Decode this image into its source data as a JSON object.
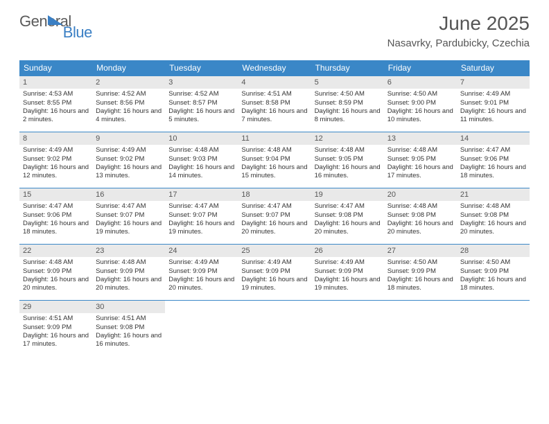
{
  "logo": {
    "word1": "General",
    "word2": "Blue"
  },
  "title": "June 2025",
  "location": "Nasavrky, Pardubicky, Czechia",
  "colors": {
    "header_bg": "#3a87c7",
    "header_text": "#ffffff",
    "daynum_bg": "#e9e9e9",
    "border": "#3a87c7",
    "logo_gray": "#5a5a5a",
    "logo_blue": "#3a7fc4"
  },
  "typography": {
    "title_fontsize": 28,
    "location_fontsize": 15,
    "weekday_fontsize": 12,
    "daynum_fontsize": 11,
    "body_fontsize": 9.5
  },
  "weekdays": [
    "Sunday",
    "Monday",
    "Tuesday",
    "Wednesday",
    "Thursday",
    "Friday",
    "Saturday"
  ],
  "labels": {
    "sunrise": "Sunrise:",
    "sunset": "Sunset:",
    "daylight": "Daylight:"
  },
  "weeks": [
    [
      {
        "n": "1",
        "sr": "4:53 AM",
        "ss": "8:55 PM",
        "dl": "16 hours and 2 minutes."
      },
      {
        "n": "2",
        "sr": "4:52 AM",
        "ss": "8:56 PM",
        "dl": "16 hours and 4 minutes."
      },
      {
        "n": "3",
        "sr": "4:52 AM",
        "ss": "8:57 PM",
        "dl": "16 hours and 5 minutes."
      },
      {
        "n": "4",
        "sr": "4:51 AM",
        "ss": "8:58 PM",
        "dl": "16 hours and 7 minutes."
      },
      {
        "n": "5",
        "sr": "4:50 AM",
        "ss": "8:59 PM",
        "dl": "16 hours and 8 minutes."
      },
      {
        "n": "6",
        "sr": "4:50 AM",
        "ss": "9:00 PM",
        "dl": "16 hours and 10 minutes."
      },
      {
        "n": "7",
        "sr": "4:49 AM",
        "ss": "9:01 PM",
        "dl": "16 hours and 11 minutes."
      }
    ],
    [
      {
        "n": "8",
        "sr": "4:49 AM",
        "ss": "9:02 PM",
        "dl": "16 hours and 12 minutes."
      },
      {
        "n": "9",
        "sr": "4:49 AM",
        "ss": "9:02 PM",
        "dl": "16 hours and 13 minutes."
      },
      {
        "n": "10",
        "sr": "4:48 AM",
        "ss": "9:03 PM",
        "dl": "16 hours and 14 minutes."
      },
      {
        "n": "11",
        "sr": "4:48 AM",
        "ss": "9:04 PM",
        "dl": "16 hours and 15 minutes."
      },
      {
        "n": "12",
        "sr": "4:48 AM",
        "ss": "9:05 PM",
        "dl": "16 hours and 16 minutes."
      },
      {
        "n": "13",
        "sr": "4:48 AM",
        "ss": "9:05 PM",
        "dl": "16 hours and 17 minutes."
      },
      {
        "n": "14",
        "sr": "4:47 AM",
        "ss": "9:06 PM",
        "dl": "16 hours and 18 minutes."
      }
    ],
    [
      {
        "n": "15",
        "sr": "4:47 AM",
        "ss": "9:06 PM",
        "dl": "16 hours and 18 minutes."
      },
      {
        "n": "16",
        "sr": "4:47 AM",
        "ss": "9:07 PM",
        "dl": "16 hours and 19 minutes."
      },
      {
        "n": "17",
        "sr": "4:47 AM",
        "ss": "9:07 PM",
        "dl": "16 hours and 19 minutes."
      },
      {
        "n": "18",
        "sr": "4:47 AM",
        "ss": "9:07 PM",
        "dl": "16 hours and 20 minutes."
      },
      {
        "n": "19",
        "sr": "4:47 AM",
        "ss": "9:08 PM",
        "dl": "16 hours and 20 minutes."
      },
      {
        "n": "20",
        "sr": "4:48 AM",
        "ss": "9:08 PM",
        "dl": "16 hours and 20 minutes."
      },
      {
        "n": "21",
        "sr": "4:48 AM",
        "ss": "9:08 PM",
        "dl": "16 hours and 20 minutes."
      }
    ],
    [
      {
        "n": "22",
        "sr": "4:48 AM",
        "ss": "9:09 PM",
        "dl": "16 hours and 20 minutes."
      },
      {
        "n": "23",
        "sr": "4:48 AM",
        "ss": "9:09 PM",
        "dl": "16 hours and 20 minutes."
      },
      {
        "n": "24",
        "sr": "4:49 AM",
        "ss": "9:09 PM",
        "dl": "16 hours and 20 minutes."
      },
      {
        "n": "25",
        "sr": "4:49 AM",
        "ss": "9:09 PM",
        "dl": "16 hours and 19 minutes."
      },
      {
        "n": "26",
        "sr": "4:49 AM",
        "ss": "9:09 PM",
        "dl": "16 hours and 19 minutes."
      },
      {
        "n": "27",
        "sr": "4:50 AM",
        "ss": "9:09 PM",
        "dl": "16 hours and 18 minutes."
      },
      {
        "n": "28",
        "sr": "4:50 AM",
        "ss": "9:09 PM",
        "dl": "16 hours and 18 minutes."
      }
    ],
    [
      {
        "n": "29",
        "sr": "4:51 AM",
        "ss": "9:09 PM",
        "dl": "16 hours and 17 minutes."
      },
      {
        "n": "30",
        "sr": "4:51 AM",
        "ss": "9:08 PM",
        "dl": "16 hours and 16 minutes."
      },
      {
        "empty": true
      },
      {
        "empty": true
      },
      {
        "empty": true
      },
      {
        "empty": true
      },
      {
        "empty": true
      }
    ]
  ]
}
